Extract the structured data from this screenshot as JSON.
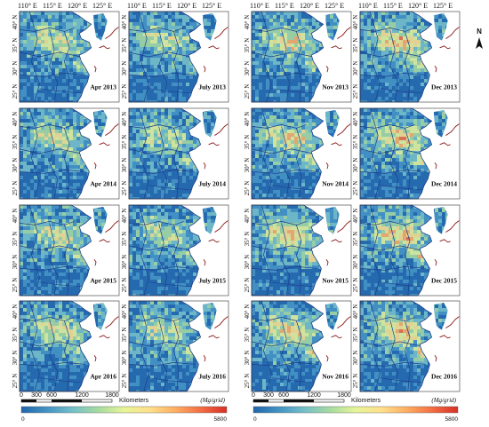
{
  "lon_labels": [
    "110° E",
    "115° E",
    "120° E",
    "125° E"
  ],
  "lat_labels": [
    "40° N",
    "35° N",
    "30° N",
    "25° N"
  ],
  "columns": [
    {
      "month": "Apr"
    },
    {
      "month": "July"
    },
    {
      "month": "Nov"
    },
    {
      "month": "Dec"
    }
  ],
  "rows": [
    {
      "year": "2013"
    },
    {
      "year": "2014"
    },
    {
      "year": "2015"
    },
    {
      "year": "2016"
    }
  ],
  "panels": [
    [
      "Apr 2013",
      "July 2013",
      "Nov 2013",
      "Dec 2013"
    ],
    [
      "Apr 2014",
      "July 2014",
      "Nov 2014",
      "Dec 2014"
    ],
    [
      "Apr 2015",
      "July 2015",
      "Nov 2015",
      "Dec 2015"
    ],
    [
      "Apr 2016",
      "July 2016",
      "Nov 2016",
      "Dec 2016"
    ]
  ],
  "north_arrow": "N",
  "scale_bar": {
    "ticks": [
      "0",
      "300",
      "600",
      "1200",
      "1800"
    ],
    "unit": "Kilometers"
  },
  "colorbar": {
    "unit": "(Mg/grid)",
    "min": "0",
    "max": "5800",
    "colors": [
      "#2166ac",
      "#4393c3",
      "#74c0c8",
      "#a6dba0",
      "#e6f598",
      "#fee08b",
      "#fdae61",
      "#f46d43",
      "#d73027"
    ]
  },
  "colors": {
    "land_low": "#3f7fbf",
    "sea": "#ffffff",
    "boundary": "#1d3f8c",
    "coast_red": "#8b1a1a"
  }
}
